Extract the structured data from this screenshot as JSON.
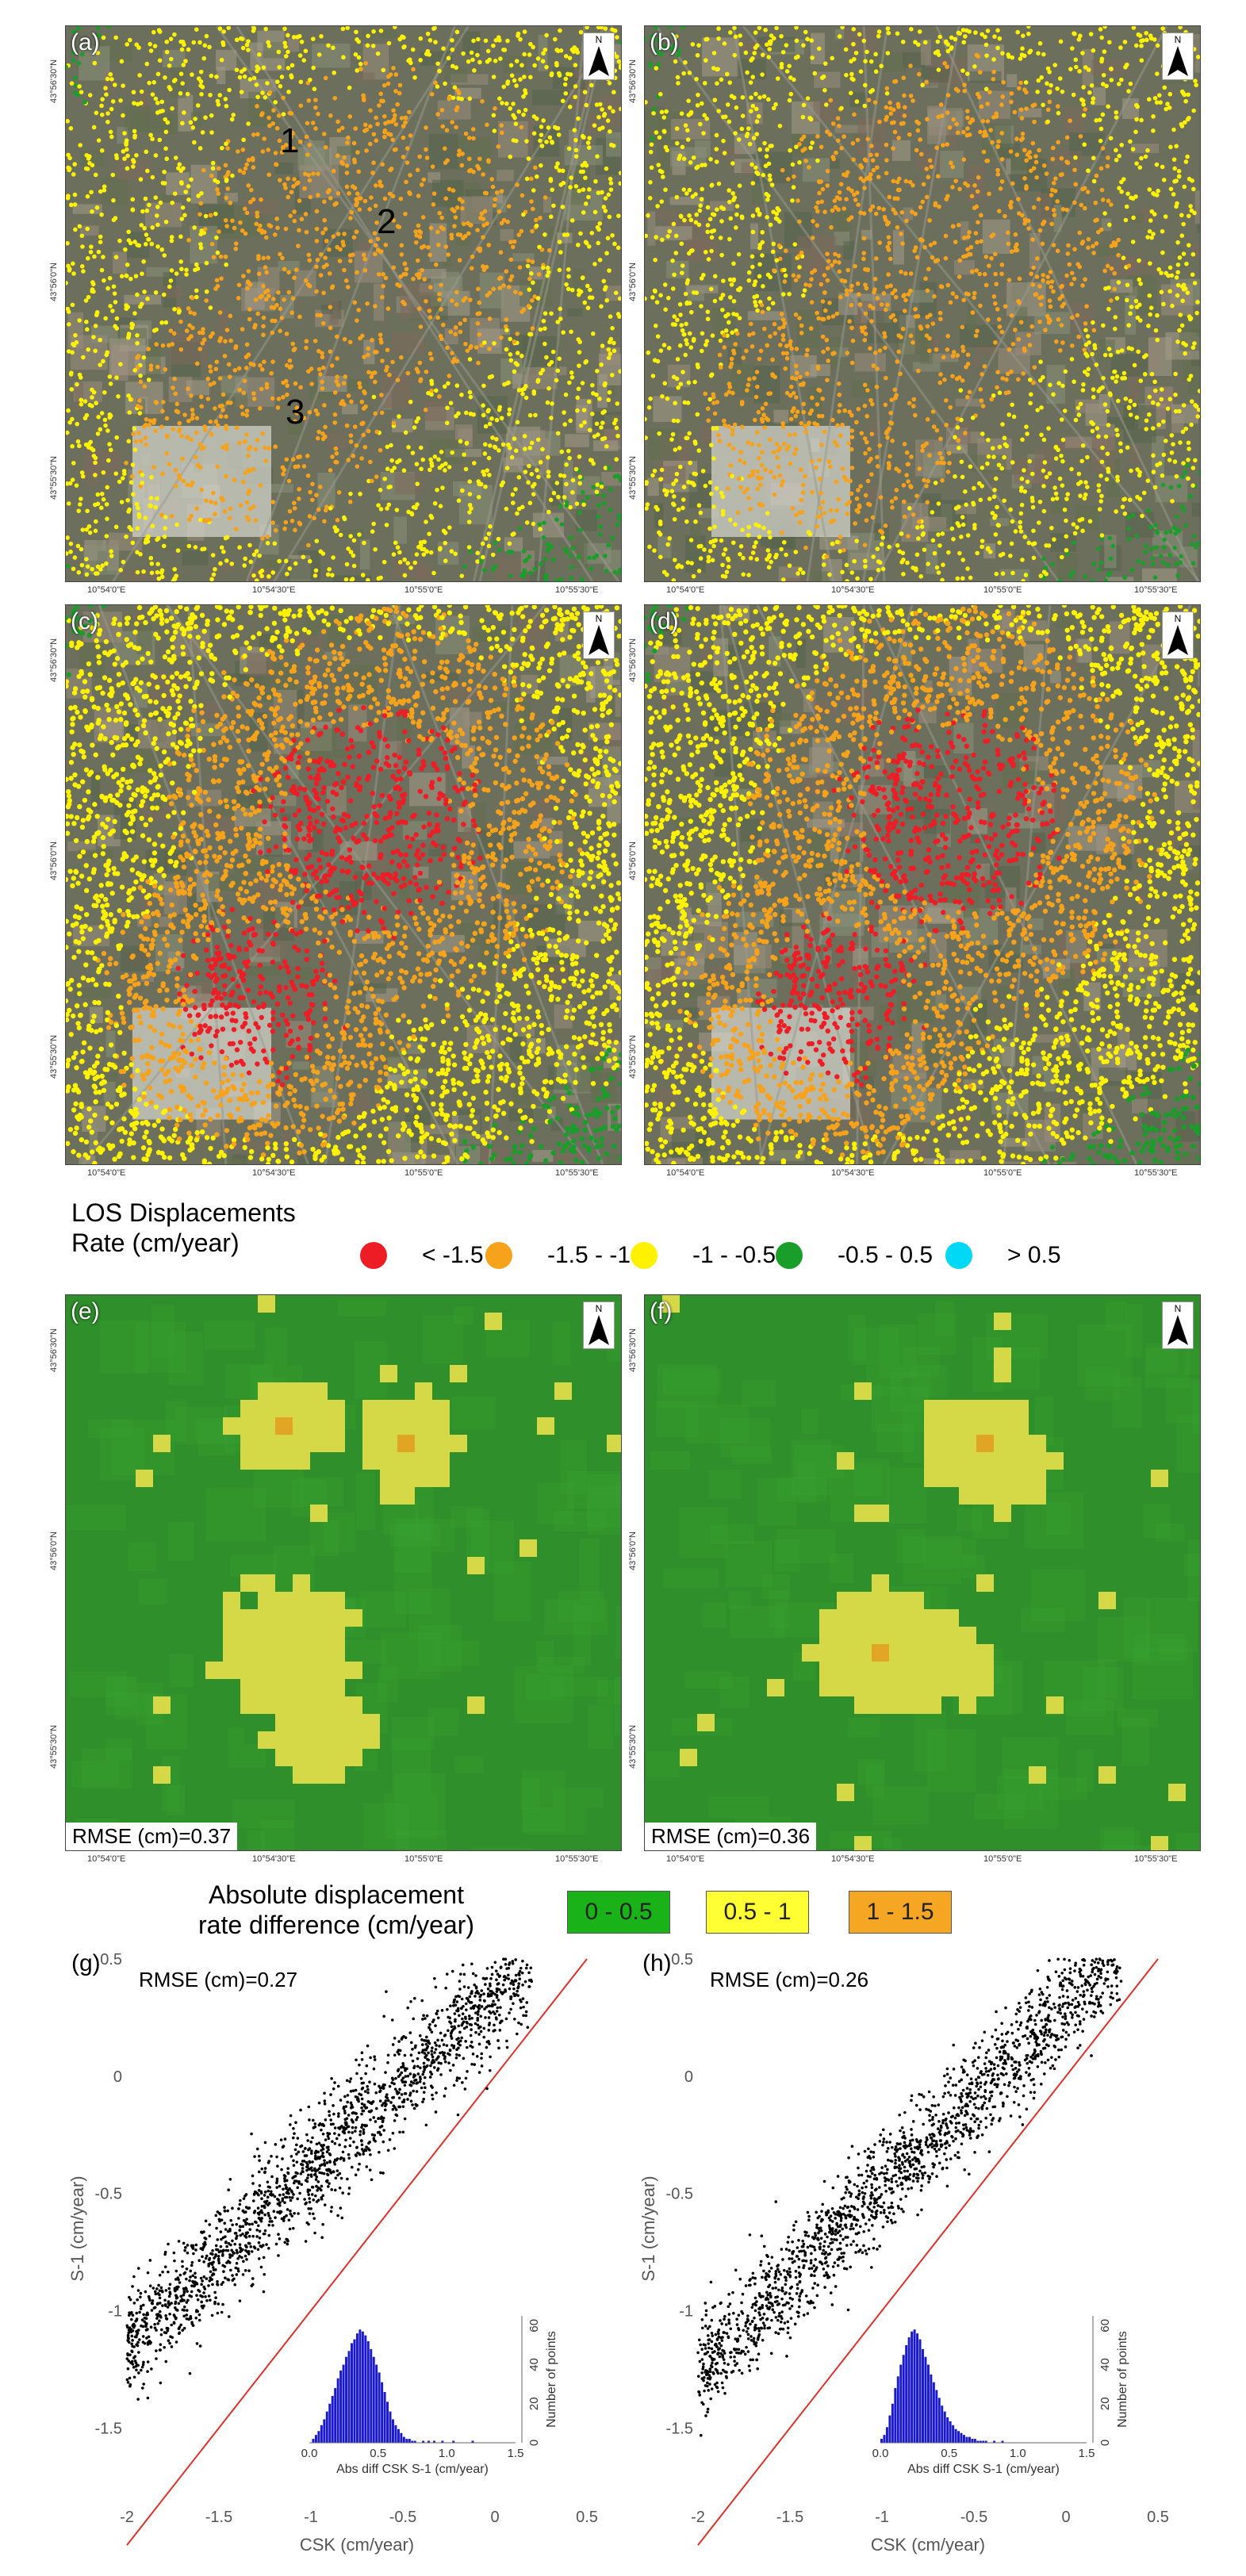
{
  "panels_top": [
    {
      "id": "a",
      "label": "(a)",
      "bg": "#6f7a63",
      "overlay": "none",
      "markers": [
        {
          "text": "1"
        },
        {
          "text": "2"
        },
        {
          "text": "3"
        }
      ]
    },
    {
      "id": "b",
      "label": "(b)",
      "bg": "#6f7a63",
      "overlay": "none",
      "markers": []
    },
    {
      "id": "c",
      "label": "(c)",
      "bg": "#6f7a63",
      "overlay": "dense",
      "markers": []
    },
    {
      "id": "d",
      "label": "(d)",
      "bg": "#6f7a63",
      "overlay": "dense",
      "markers": []
    }
  ],
  "panels_diff": [
    {
      "id": "e",
      "label": "(e)",
      "rmse": "RMSE (cm)=0.37"
    },
    {
      "id": "f",
      "label": "(f)",
      "rmse": "RMSE (cm)=0.36"
    }
  ],
  "north_letter": "N",
  "coords": {
    "row1_left_y": [
      "43°56'30\"N",
      "43°56'0\"N",
      "43°55'30\"N"
    ],
    "row1_x_a": [
      "10°54'0\"E",
      "10°54'30\"E",
      "10°55'0\"E",
      "10°55'30\"E"
    ],
    "row1_x_b": [
      "10°54'0\"E",
      "10°54'30\"E",
      "10°55'0\"E",
      "10°55'30\"E"
    ],
    "row2_x_c": [
      "10°54'0\"E",
      "10°54'30\"E",
      "10°55'0\"E",
      "10°55'30\"E"
    ],
    "row2_x_d": [
      "10°54'0\"E",
      "10°54'30\"E",
      "10°55'0\"E",
      "10°55'30\"E"
    ],
    "row3_x_e": [
      "10°54'0\"E",
      "10°54'30\"E",
      "10°55'0\"E",
      "10°55'30\"E"
    ],
    "row3_x_f": [
      "10°54'0\"E",
      "10°54'30\"E",
      "10°55'0\"E",
      "10°55'30\"E"
    ]
  },
  "los_legend": {
    "title_line1": "LOS Displacements",
    "title_line2": "Rate (cm/year)",
    "items": [
      {
        "label": "< -1.5",
        "color": "#ee1c24"
      },
      {
        "label": "-1.5 - -1",
        "color": "#f7a21b"
      },
      {
        "label": "-1 - -0.5",
        "color": "#fff200"
      },
      {
        "label": "-0.5 - 0.5",
        "color": "#1a9e2a"
      },
      {
        "label": "> 0.5",
        "color": "#00d8f5"
      }
    ]
  },
  "diff_legend": {
    "title_line1": "Absolute displacement",
    "title_line2": "rate difference (cm/year)",
    "items": [
      {
        "label": "0 - 0.5",
        "color": "#19b319"
      },
      {
        "label": "0.5 - 1",
        "color": "#ffff33"
      },
      {
        "label": "1 - 1.5",
        "color": "#f5a623"
      }
    ]
  },
  "chart_data": [
    {
      "type": "scatter",
      "panel": "(g)",
      "annotation": "RMSE (cm)=0.27",
      "xlabel": "CSK (cm/year)",
      "ylabel": "S-1 (cm/year)",
      "xlim": [
        -2,
        0.5
      ],
      "ylim": [
        -1.8,
        0.5
      ],
      "xticks": [
        "-2",
        "-1.5",
        "-1",
        "-0.5",
        "0",
        "0.5"
      ],
      "yticks": [
        "0.5",
        "0",
        "-0.5",
        "-1",
        "-1.5"
      ],
      "identity_line_color": "#e0302a",
      "cloud": {
        "x_range": [
          -2.0,
          0.2
        ],
        "intercept": 0.35,
        "slope": 0.75,
        "spread": 0.12,
        "n": 1800
      },
      "inset": {
        "type": "bar",
        "xlabel": "Abs diff CSK S-1 (cm/year)",
        "ylabel": "Number of points",
        "xticks": [
          "0.0",
          "0.5",
          "1.0",
          "1.5"
        ],
        "yticks": [
          "0",
          "20",
          "40",
          "60"
        ],
        "bin_width": 0.02,
        "counts": [
          0,
          2,
          4,
          6,
          9,
          12,
          16,
          20,
          24,
          28,
          33,
          37,
          40,
          44,
          47,
          51,
          53,
          56,
          58,
          57,
          55,
          52,
          48,
          44,
          40,
          36,
          31,
          26,
          21,
          16,
          12,
          9,
          7,
          5,
          3,
          2,
          2,
          1,
          1,
          0,
          0,
          1,
          0,
          1,
          0,
          1,
          0,
          0,
          1,
          0,
          0,
          0,
          1,
          0,
          0,
          0,
          0,
          0,
          0,
          1
        ]
      }
    },
    {
      "type": "scatter",
      "panel": "(h)",
      "annotation": "RMSE (cm)=0.26",
      "xlabel": "CSK (cm/year)",
      "ylabel": "S-1 (cm/year)",
      "xlim": [
        -2,
        0.5
      ],
      "ylim": [
        -1.8,
        0.5
      ],
      "xticks": [
        "-2",
        "-1.5",
        "-1",
        "-0.5",
        "0",
        "0.5"
      ],
      "yticks": [
        "0.5",
        "0",
        "-0.5",
        "-1",
        "-1.5"
      ],
      "identity_line_color": "#e0302a",
      "cloud": {
        "x_range": [
          -2.0,
          0.3
        ],
        "intercept": 0.3,
        "slope": 0.78,
        "spread": 0.11,
        "n": 1800
      },
      "inset": {
        "type": "bar",
        "xlabel": "Abs diff CSK S-1 (cm/year)",
        "ylabel": "Number of points",
        "xticks": [
          "0.0",
          "0.5",
          "1.0",
          "1.5"
        ],
        "yticks": [
          "0",
          "20",
          "40",
          "60"
        ],
        "bin_width": 0.02,
        "counts": [
          2,
          4,
          8,
          14,
          20,
          28,
          34,
          40,
          45,
          50,
          54,
          57,
          58,
          56,
          53,
          48,
          44,
          40,
          35,
          31,
          27,
          23,
          19,
          16,
          13,
          11,
          9,
          7,
          6,
          5,
          4,
          3,
          3,
          2,
          2,
          1,
          1,
          1,
          1,
          0,
          0,
          1,
          0,
          0,
          1,
          0,
          0,
          0,
          0,
          0,
          0,
          0,
          0,
          0,
          0,
          0,
          0,
          0,
          0,
          0
        ]
      }
    }
  ]
}
